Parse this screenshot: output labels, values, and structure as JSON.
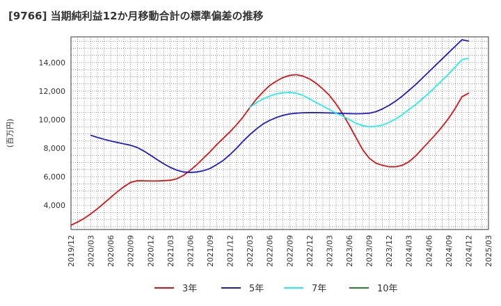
{
  "chart_data": {
    "type": "line",
    "title": "[9766]  当期純利益12か月移動合計の標準偏差の推移",
    "ylabel": "(百万円)",
    "xlabel": "",
    "ylim": [
      2300,
      15800
    ],
    "yticks": [
      4000,
      6000,
      8000,
      10000,
      12000,
      14000
    ],
    "ytick_labels": [
      "4,000",
      "6,000",
      "8,000",
      "10,000",
      "12,000",
      "14,000"
    ],
    "x_ticks": [
      "2019/12",
      "2020/03",
      "2020/06",
      "2020/09",
      "2020/12",
      "2021/03",
      "2021/06",
      "2021/09",
      "2021/12",
      "2022/03",
      "2022/06",
      "2022/09",
      "2022/12",
      "2023/03",
      "2023/06",
      "2023/09",
      "2023/12",
      "2024/03",
      "2024/06",
      "2024/09",
      "2024/12",
      "2025/03"
    ],
    "grid": true,
    "legend_position": "bottom",
    "series": [
      {
        "name": "3年",
        "color": "#dd1111",
        "points": [
          [
            "2019/12",
            2600
          ],
          [
            "2020/01",
            2820
          ],
          [
            "2020/02",
            3080
          ],
          [
            "2020/03",
            3400
          ],
          [
            "2020/04",
            3760
          ],
          [
            "2020/05",
            4150
          ],
          [
            "2020/06",
            4550
          ],
          [
            "2020/07",
            4950
          ],
          [
            "2020/08",
            5300
          ],
          [
            "2020/09",
            5600
          ],
          [
            "2020/10",
            5720
          ],
          [
            "2020/11",
            5710
          ],
          [
            "2020/12",
            5700
          ],
          [
            "2021/01",
            5700
          ],
          [
            "2021/02",
            5720
          ],
          [
            "2021/03",
            5750
          ],
          [
            "2021/04",
            5860
          ],
          [
            "2021/05",
            6100
          ],
          [
            "2021/06",
            6450
          ],
          [
            "2021/07",
            6850
          ],
          [
            "2021/08",
            7300
          ],
          [
            "2021/09",
            7750
          ],
          [
            "2021/10",
            8250
          ],
          [
            "2021/11",
            8700
          ],
          [
            "2021/12",
            9150
          ],
          [
            "2022/01",
            9650
          ],
          [
            "2022/02",
            10200
          ],
          [
            "2022/03",
            10850
          ],
          [
            "2022/04",
            11450
          ],
          [
            "2022/05",
            11950
          ],
          [
            "2022/06",
            12400
          ],
          [
            "2022/07",
            12700
          ],
          [
            "2022/08",
            12950
          ],
          [
            "2022/09",
            13100
          ],
          [
            "2022/10",
            13150
          ],
          [
            "2022/11",
            13050
          ],
          [
            "2022/12",
            12850
          ],
          [
            "2023/01",
            12550
          ],
          [
            "2023/02",
            12150
          ],
          [
            "2023/03",
            11700
          ],
          [
            "2023/04",
            11100
          ],
          [
            "2023/05",
            10400
          ],
          [
            "2023/06",
            9600
          ],
          [
            "2023/07",
            8750
          ],
          [
            "2023/08",
            7900
          ],
          [
            "2023/09",
            7300
          ],
          [
            "2023/10",
            6950
          ],
          [
            "2023/11",
            6800
          ],
          [
            "2023/12",
            6700
          ],
          [
            "2024/01",
            6700
          ],
          [
            "2024/02",
            6800
          ],
          [
            "2024/03",
            7050
          ],
          [
            "2024/04",
            7450
          ],
          [
            "2024/05",
            7950
          ],
          [
            "2024/06",
            8450
          ],
          [
            "2024/07",
            8950
          ],
          [
            "2024/08",
            9500
          ],
          [
            "2024/09",
            10100
          ],
          [
            "2024/10",
            10800
          ],
          [
            "2024/11",
            11600
          ],
          [
            "2024/12",
            11850
          ]
        ]
      },
      {
        "name": "5年",
        "color": "#1a1acc",
        "points": [
          [
            "2020/03",
            8900
          ],
          [
            "2020/04",
            8750
          ],
          [
            "2020/05",
            8620
          ],
          [
            "2020/06",
            8500
          ],
          [
            "2020/07",
            8400
          ],
          [
            "2020/08",
            8300
          ],
          [
            "2020/09",
            8200
          ],
          [
            "2020/10",
            8050
          ],
          [
            "2020/11",
            7800
          ],
          [
            "2020/12",
            7500
          ],
          [
            "2021/01",
            7200
          ],
          [
            "2021/02",
            6900
          ],
          [
            "2021/03",
            6650
          ],
          [
            "2021/04",
            6450
          ],
          [
            "2021/05",
            6330
          ],
          [
            "2021/06",
            6300
          ],
          [
            "2021/07",
            6330
          ],
          [
            "2021/08",
            6420
          ],
          [
            "2021/09",
            6580
          ],
          [
            "2021/10",
            6850
          ],
          [
            "2021/11",
            7150
          ],
          [
            "2021/12",
            7550
          ],
          [
            "2022/01",
            8000
          ],
          [
            "2022/02",
            8500
          ],
          [
            "2022/03",
            8950
          ],
          [
            "2022/04",
            9350
          ],
          [
            "2022/05",
            9700
          ],
          [
            "2022/06",
            9950
          ],
          [
            "2022/07",
            10150
          ],
          [
            "2022/08",
            10300
          ],
          [
            "2022/09",
            10400
          ],
          [
            "2022/10",
            10450
          ],
          [
            "2022/11",
            10480
          ],
          [
            "2022/12",
            10490
          ],
          [
            "2023/01",
            10490
          ],
          [
            "2023/02",
            10480
          ],
          [
            "2023/03",
            10470
          ],
          [
            "2023/04",
            10450
          ],
          [
            "2023/05",
            10430
          ],
          [
            "2023/06",
            10420
          ],
          [
            "2023/07",
            10410
          ],
          [
            "2023/08",
            10420
          ],
          [
            "2023/09",
            10450
          ],
          [
            "2023/10",
            10550
          ],
          [
            "2023/11",
            10750
          ],
          [
            "2023/12",
            11000
          ],
          [
            "2024/01",
            11300
          ],
          [
            "2024/02",
            11650
          ],
          [
            "2024/03",
            12050
          ],
          [
            "2024/04",
            12450
          ],
          [
            "2024/05",
            12900
          ],
          [
            "2024/06",
            13350
          ],
          [
            "2024/07",
            13800
          ],
          [
            "2024/08",
            14250
          ],
          [
            "2024/09",
            14700
          ],
          [
            "2024/10",
            15150
          ],
          [
            "2024/11",
            15600
          ],
          [
            "2024/12",
            15500
          ]
        ]
      },
      {
        "name": "7年",
        "color": "#22eeee",
        "points": [
          [
            "2022/03",
            10850
          ],
          [
            "2022/04",
            11200
          ],
          [
            "2022/05",
            11450
          ],
          [
            "2022/06",
            11650
          ],
          [
            "2022/07",
            11800
          ],
          [
            "2022/08",
            11880
          ],
          [
            "2022/09",
            11900
          ],
          [
            "2022/10",
            11850
          ],
          [
            "2022/11",
            11700
          ],
          [
            "2022/12",
            11450
          ],
          [
            "2023/01",
            11200
          ],
          [
            "2023/02",
            10950
          ],
          [
            "2023/03",
            10700
          ],
          [
            "2023/04",
            10450
          ],
          [
            "2023/05",
            10250
          ],
          [
            "2023/06",
            10000
          ],
          [
            "2023/07",
            9750
          ],
          [
            "2023/08",
            9580
          ],
          [
            "2023/09",
            9500
          ],
          [
            "2023/10",
            9520
          ],
          [
            "2023/11",
            9620
          ],
          [
            "2023/12",
            9800
          ],
          [
            "2024/01",
            10050
          ],
          [
            "2024/02",
            10350
          ],
          [
            "2024/03",
            10700
          ],
          [
            "2024/04",
            11050
          ],
          [
            "2024/05",
            11450
          ],
          [
            "2024/06",
            11850
          ],
          [
            "2024/07",
            12300
          ],
          [
            "2024/08",
            12750
          ],
          [
            "2024/09",
            13200
          ],
          [
            "2024/10",
            13700
          ],
          [
            "2024/11",
            14200
          ],
          [
            "2024/12",
            14300
          ]
        ]
      },
      {
        "name": "10年",
        "color": "#228822",
        "points": []
      }
    ]
  }
}
